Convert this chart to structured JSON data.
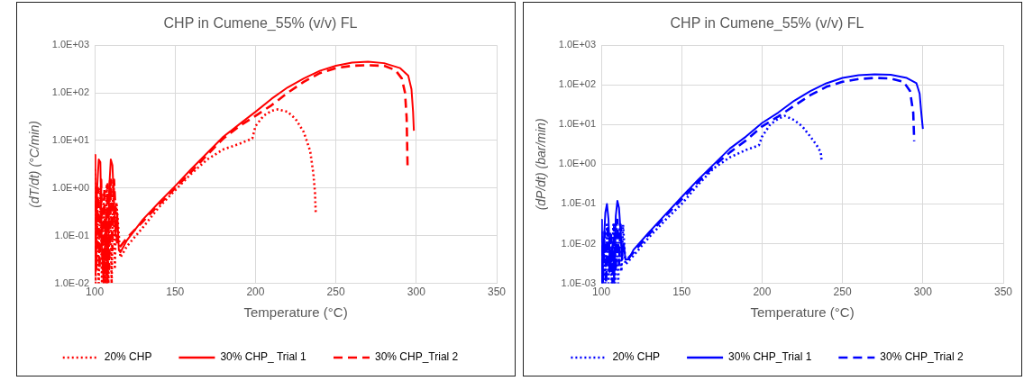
{
  "chart_data": [
    {
      "type": "line",
      "title": "CHP in Cumene_55% (v/v) FL",
      "xlabel": "Temperature (°C)",
      "ylabel": "(dT/dt) (°C/min)",
      "log": "y",
      "grid": true,
      "legend": "bottom",
      "marker": "none",
      "xlim": [
        100,
        350
      ],
      "xticks": [
        100,
        150,
        200,
        250,
        300,
        350
      ],
      "ylim": [
        0.01,
        1000
      ],
      "yticks": [
        {
          "value": 0.01,
          "label": "1.0E-02"
        },
        {
          "value": 0.1,
          "label": "1.0E-01"
        },
        {
          "value": 1,
          "label": "1.0E+00"
        },
        {
          "value": 10,
          "label": "1.0E+01"
        },
        {
          "value": 100,
          "label": "1.0E+02"
        },
        {
          "value": 1000,
          "label": "1.0E+03"
        }
      ],
      "series": [
        {
          "name": "20% CHP",
          "color": "#ff0000",
          "line_style": "dotted",
          "x": [
            100,
            100.5,
            101.5,
            102.5,
            103.5,
            104.5,
            105.5,
            106.5,
            107.5,
            108.5,
            109.5,
            110.5,
            111.5,
            112.5,
            113.5,
            116,
            120,
            130,
            140,
            150,
            160,
            170,
            180,
            190,
            198,
            200,
            205,
            210,
            213.7,
            220,
            225,
            230,
            234,
            236,
            237,
            237.5
          ],
          "values": [
            2.5,
            0.01,
            0.5,
            0.01,
            1,
            0.01,
            0.8,
            0.01,
            1.2,
            0.01,
            1.5,
            0.01,
            1.5,
            0.02,
            0.5,
            0.035,
            0.06,
            0.15,
            0.4,
            0.9,
            2,
            4,
            6.5,
            8.5,
            11,
            20,
            33,
            42,
            45,
            40,
            28,
            15,
            6,
            2,
            0.8,
            0.28
          ]
        },
        {
          "name": "30% CHP_ Trial 1",
          "color": "#ff0000",
          "line_style": "solid",
          "x": [
            100,
            100.4,
            101.5,
            102.5,
            103.5,
            104.5,
            105.5,
            107,
            108,
            109,
            110,
            111,
            112,
            113,
            114,
            115,
            116,
            118,
            120,
            130,
            140,
            150,
            160,
            170,
            180,
            190,
            200,
            210,
            220,
            230,
            240,
            250,
            260,
            270,
            280,
            290,
            295,
            297,
            298,
            298.5
          ],
          "values": [
            5,
            0.015,
            1,
            4,
            3.5,
            0.05,
            0.01,
            0.3,
            0.01,
            1,
            4,
            3,
            0.5,
            0.1,
            0.3,
            0.05,
            0.045,
            0.06,
            0.08,
            0.22,
            0.5,
            1.1,
            2.5,
            5.5,
            12,
            22,
            40,
            75,
            130,
            200,
            290,
            370,
            430,
            450,
            420,
            330,
            230,
            120,
            40,
            16
          ]
        },
        {
          "name": "30% CHP_Trial 2",
          "color": "#ff0000",
          "line_style": "dashed",
          "x": [
            100,
            101,
            102,
            103,
            104,
            105,
            106,
            107,
            108,
            109,
            110,
            111,
            112,
            113,
            114,
            116,
            120,
            130,
            140,
            150,
            160,
            170,
            180,
            190,
            200,
            210,
            220,
            230,
            240,
            250,
            260,
            270,
            280,
            287,
            291,
            293,
            294,
            294.6
          ],
          "values": [
            0.5,
            0.02,
            1,
            0.02,
            1.5,
            0.02,
            1,
            0.01,
            1.2,
            0.02,
            1.5,
            0.05,
            1.5,
            0.3,
            0.06,
            0.06,
            0.09,
            0.2,
            0.45,
            1,
            2.2,
            5,
            11,
            20,
            33,
            55,
            100,
            170,
            260,
            330,
            370,
            380,
            370,
            300,
            200,
            100,
            30,
            2.6
          ]
        }
      ]
    },
    {
      "type": "line",
      "title": "CHP in Cumene_55% (v/v) FL",
      "xlabel": "Temperature (°C)",
      "ylabel": "(dP/dt) (bar/min)",
      "log": "y",
      "grid": true,
      "legend": "bottom",
      "marker": "none",
      "xlim": [
        100,
        350
      ],
      "xticks": [
        100,
        150,
        200,
        250,
        300,
        350
      ],
      "ylim": [
        0.001,
        1000
      ],
      "yticks": [
        {
          "value": 0.001,
          "label": "1.0E-03"
        },
        {
          "value": 0.01,
          "label": "1.0E-02"
        },
        {
          "value": 0.1,
          "label": "1.0E-01"
        },
        {
          "value": 1,
          "label": "1.0E+00"
        },
        {
          "value": 10,
          "label": "1.0E+01"
        },
        {
          "value": 100,
          "label": "1.0E+02"
        },
        {
          "value": 1000,
          "label": "1.0E+03"
        }
      ],
      "series": [
        {
          "name": "20% CHP",
          "color": "#0000ff",
          "line_style": "dotted",
          "x": [
            100,
            100.5,
            101.5,
            102.5,
            103.5,
            104.5,
            105.5,
            106.5,
            107.5,
            108.5,
            109.5,
            110.5,
            111.5,
            112.5,
            113.5,
            115,
            120,
            130,
            140,
            150,
            160,
            170,
            180,
            190,
            198,
            200,
            205,
            210,
            214,
            220,
            225,
            230,
            234,
            236.5,
            237
          ],
          "values": [
            0.02,
            0.001,
            0.01,
            0.001,
            0.03,
            0.001,
            0.02,
            0.001,
            0.03,
            0.001,
            0.03,
            0.001,
            0.03,
            0.002,
            0.03,
            0.003,
            0.005,
            0.015,
            0.04,
            0.1,
            0.3,
            0.8,
            1.5,
            2.3,
            3,
            5,
            10,
            14,
            16.6,
            13,
            9,
            5,
            3,
            2,
            1.2
          ]
        },
        {
          "name": "30% CHP_Trial 1",
          "color": "#0000ff",
          "line_style": "solid",
          "x": [
            100,
            100.4,
            101.5,
            102.5,
            103.5,
            104.5,
            105.5,
            107,
            108,
            109,
            110,
            111,
            112,
            113,
            114,
            115,
            117,
            120,
            130,
            140,
            150,
            160,
            170,
            180,
            190,
            200,
            210,
            220,
            230,
            240,
            250,
            260,
            270,
            280,
            290,
            296,
            298,
            299,
            300
          ],
          "values": [
            0.04,
            0.001,
            0.01,
            0.06,
            0.1,
            0.04,
            0.002,
            0.01,
            0.001,
            0.05,
            0.12,
            0.08,
            0.02,
            0.005,
            0.01,
            0.004,
            0.004,
            0.007,
            0.02,
            0.055,
            0.15,
            0.4,
            1,
            2.5,
            5,
            11,
            20,
            40,
            70,
            110,
            150,
            175,
            185,
            180,
            150,
            110,
            60,
            20,
            7.8
          ]
        },
        {
          "name": "30% CHP_Trial 2",
          "color": "#0000ff",
          "line_style": "dashed",
          "x": [
            100,
            101,
            102,
            103,
            104,
            105,
            106,
            107,
            108,
            109,
            110,
            111,
            112,
            113,
            114,
            116,
            120,
            130,
            140,
            150,
            160,
            170,
            180,
            190,
            200,
            210,
            220,
            230,
            240,
            250,
            260,
            270,
            280,
            288,
            292,
            294,
            294.6
          ],
          "values": [
            0.02,
            0.001,
            0.02,
            0.001,
            0.03,
            0.002,
            0.02,
            0.001,
            0.03,
            0.002,
            0.04,
            0.003,
            0.03,
            0.004,
            0.004,
            0.004,
            0.006,
            0.018,
            0.05,
            0.13,
            0.35,
            0.9,
            2,
            4,
            9,
            16,
            30,
            55,
            90,
            120,
            140,
            150,
            145,
            120,
            70,
            20,
            3.8
          ]
        }
      ]
    }
  ]
}
